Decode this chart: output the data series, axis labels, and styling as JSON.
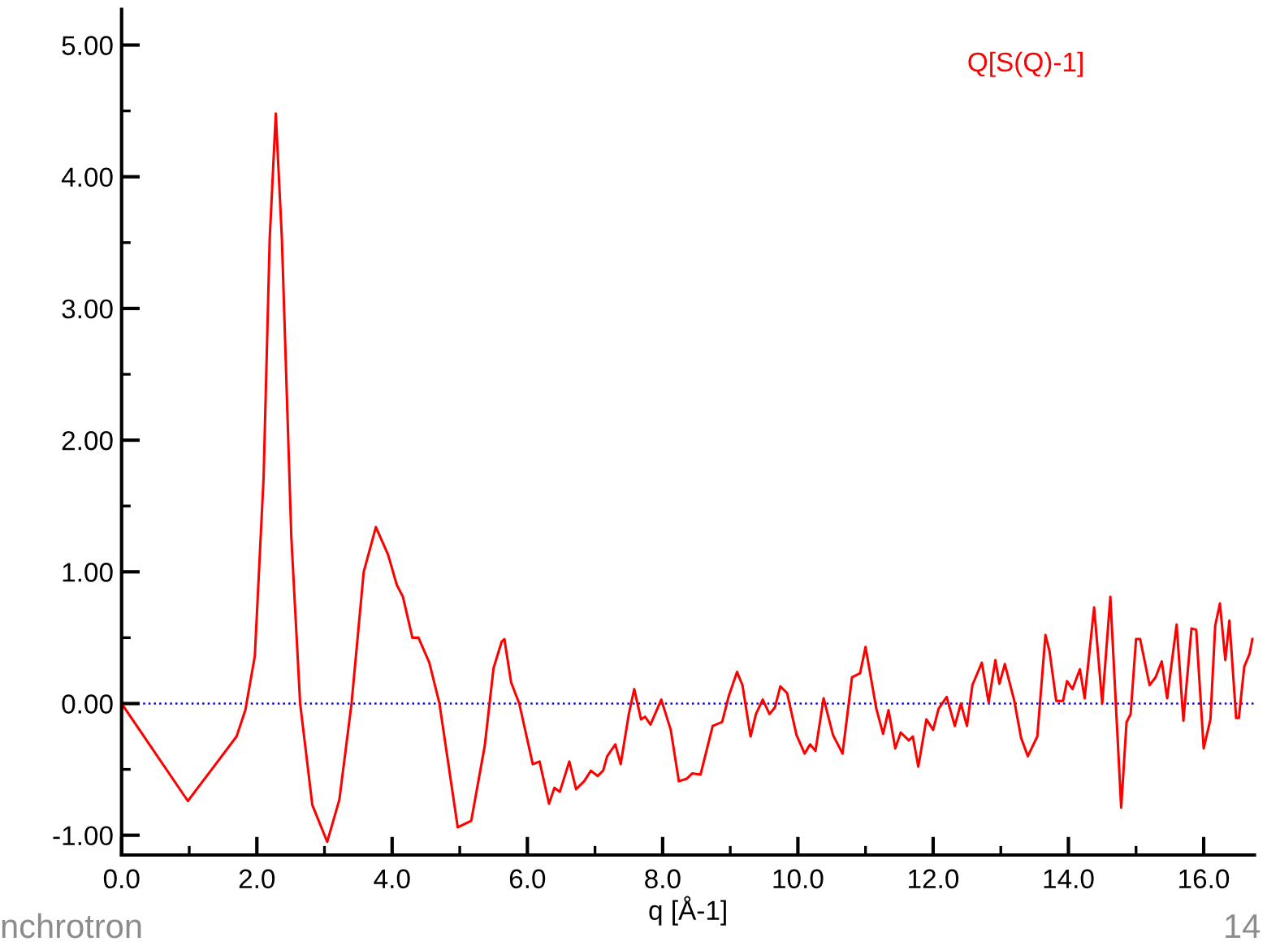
{
  "chart_data": {
    "type": "line",
    "xlabel": "q [Å-1]",
    "xlim": [
      0,
      16.75
    ],
    "ylim": [
      -1.15,
      5.27
    ],
    "xticks": [
      {
        "value": 0,
        "label": "0.0"
      },
      {
        "value": 1,
        "label": null
      },
      {
        "value": 2,
        "label": "2.0"
      },
      {
        "value": 3,
        "label": null
      },
      {
        "value": 4,
        "label": "4.0"
      },
      {
        "value": 5,
        "label": null
      },
      {
        "value": 6,
        "label": "6.0"
      },
      {
        "value": 7,
        "label": null
      },
      {
        "value": 8,
        "label": "8.0"
      },
      {
        "value": 9,
        "label": null
      },
      {
        "value": 10,
        "label": "10.0"
      },
      {
        "value": 11,
        "label": null
      },
      {
        "value": 12,
        "label": "12.0"
      },
      {
        "value": 13,
        "label": null
      },
      {
        "value": 14,
        "label": "14.0"
      },
      {
        "value": 15,
        "label": null
      },
      {
        "value": 16,
        "label": "16.0"
      }
    ],
    "yticks": [
      {
        "value": -1,
        "label": "-1.00"
      },
      {
        "value": -0.5,
        "label": null
      },
      {
        "value": 0,
        "label": "0.00"
      },
      {
        "value": 0.5,
        "label": null
      },
      {
        "value": 1,
        "label": "1.00"
      },
      {
        "value": 1.5,
        "label": null
      },
      {
        "value": 2,
        "label": "2.00"
      },
      {
        "value": 2.5,
        "label": null
      },
      {
        "value": 3,
        "label": "3.00"
      },
      {
        "value": 3.5,
        "label": null
      },
      {
        "value": 4,
        "label": "4.00"
      },
      {
        "value": 4.5,
        "label": null
      },
      {
        "value": 5,
        "label": "5.00"
      }
    ],
    "grid": false,
    "legend": "top right",
    "marker": "none",
    "line_style": "solid",
    "ref_lines": [
      {
        "axis": "y",
        "value": 0,
        "label": null,
        "color": "#0000ff",
        "line_style": "dotted"
      }
    ],
    "annotations": [
      "nchrotron",
      "14"
    ],
    "series": [
      {
        "name": "Q[S(Q)-1]",
        "color": "#ff0000",
        "x": [
          0,
          0.98,
          1.7,
          1.83,
          1.97,
          2.1,
          2.19,
          2.28,
          2.37,
          2.51,
          2.64,
          2.82,
          3.04,
          3.22,
          3.4,
          3.58,
          3.76,
          3.94,
          4.07,
          4.16,
          4.3,
          4.39,
          4.55,
          4.7,
          4.97,
          5.17,
          5.37,
          5.5,
          5.62,
          5.66,
          5.76,
          5.88,
          6.08,
          6.18,
          6.32,
          6.4,
          6.48,
          6.62,
          6.72,
          6.84,
          6.94,
          7.04,
          7.12,
          7.18,
          7.3,
          7.38,
          7.5,
          7.58,
          7.68,
          7.74,
          7.82,
          7.98,
          8.12,
          8.24,
          8.36,
          8.44,
          8.56,
          8.74,
          8.88,
          8.98,
          9.1,
          9.18,
          9.3,
          9.38,
          9.48,
          9.58,
          9.66,
          9.74,
          9.84,
          9.98,
          10.1,
          10.18,
          10.26,
          10.38,
          10.52,
          10.66,
          10.8,
          10.92,
          11.0,
          11.16,
          11.26,
          11.34,
          11.44,
          11.52,
          11.64,
          11.7,
          11.78,
          11.9,
          12.0,
          12.08,
          12.2,
          12.32,
          12.41,
          12.5,
          12.58,
          12.72,
          12.82,
          12.92,
          12.98,
          13.06,
          13.2,
          13.3,
          13.4,
          13.54,
          13.66,
          13.72,
          13.82,
          13.92,
          13.98,
          14.06,
          14.17,
          14.24,
          14.38,
          14.5,
          14.62,
          14.78,
          14.86,
          14.92,
          15.0,
          15.06,
          15.2,
          15.29,
          15.38,
          15.46,
          15.6,
          15.7,
          15.82,
          15.89,
          16.0,
          16.1,
          16.17,
          16.24,
          16.32,
          16.38,
          16.48,
          16.52,
          16.6,
          16.68,
          16.72
        ],
        "values": [
          0,
          -0.74,
          -0.25,
          -0.05,
          0.36,
          1.72,
          3.53,
          4.48,
          3.53,
          1.26,
          0,
          -0.77,
          -1.05,
          -0.73,
          0,
          1.0,
          1.34,
          1.13,
          0.9,
          0.81,
          0.5,
          0.5,
          0.31,
          0,
          -0.94,
          -0.89,
          -0.32,
          0.27,
          0.47,
          0.49,
          0.16,
          0,
          -0.46,
          -0.44,
          -0.76,
          -0.64,
          -0.67,
          -0.44,
          -0.65,
          -0.59,
          -0.51,
          -0.55,
          -0.51,
          -0.4,
          -0.31,
          -0.46,
          -0.08,
          0.11,
          -0.12,
          -0.1,
          -0.16,
          0.03,
          -0.2,
          -0.59,
          -0.57,
          -0.53,
          -0.54,
          -0.17,
          -0.14,
          0.06,
          0.24,
          0.14,
          -0.25,
          -0.08,
          0.03,
          -0.08,
          -0.03,
          0.13,
          0.08,
          -0.24,
          -0.38,
          -0.31,
          -0.36,
          0.04,
          -0.24,
          -0.38,
          0.2,
          0.23,
          0.43,
          -0.04,
          -0.23,
          -0.05,
          -0.34,
          -0.22,
          -0.28,
          -0.25,
          -0.48,
          -0.12,
          -0.2,
          -0.04,
          0.05,
          -0.17,
          0,
          -0.17,
          0.14,
          0.31,
          0.01,
          0.33,
          0.15,
          0.3,
          0.02,
          -0.26,
          -0.4,
          -0.25,
          0.52,
          0.4,
          0.02,
          0.02,
          0.17,
          0.11,
          0.26,
          0.04,
          0.73,
          0,
          0.81,
          -0.79,
          -0.14,
          -0.08,
          0.49,
          0.49,
          0.14,
          0.2,
          0.32,
          0.04,
          0.6,
          -0.13,
          0.57,
          0.56,
          -0.34,
          -0.12,
          0.59,
          0.76,
          0.33,
          0.63,
          -0.11,
          -0.11,
          0.28,
          0.38,
          0.49
        ]
      }
    ]
  }
}
